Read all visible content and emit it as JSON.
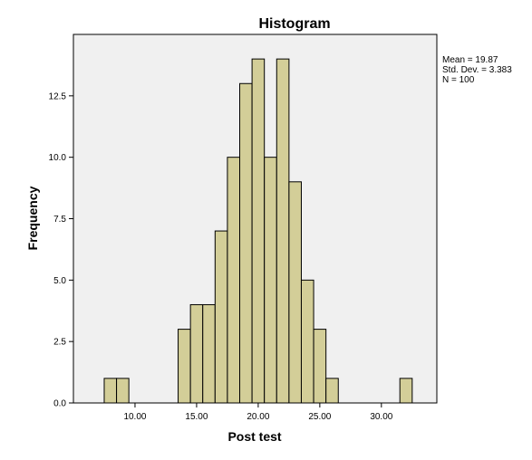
{
  "chart_data": {
    "type": "bar",
    "title": "Histogram",
    "xlabel": "Post test",
    "ylabel": "Frequency",
    "x_bin_width": 1.0,
    "x_bin_starts": [
      7.5,
      8.5,
      9.5,
      10.5,
      11.5,
      12.5,
      13.5,
      14.5,
      15.5,
      16.5,
      17.5,
      18.5,
      19.5,
      20.5,
      21.5,
      22.5,
      23.5,
      24.5,
      25.5,
      26.5,
      27.5,
      28.5,
      29.5,
      30.5,
      31.5
    ],
    "values": [
      1,
      1,
      0,
      0,
      0,
      0,
      3,
      4,
      4,
      7,
      10,
      13,
      14,
      10,
      14,
      9,
      5,
      3,
      1,
      0,
      0,
      0,
      0,
      0,
      1
    ],
    "xlim": [
      5.0,
      34.5
    ],
    "ylim": [
      0,
      15.0
    ],
    "x_ticks": [
      "10.00",
      "15.00",
      "20.00",
      "25.00",
      "30.00"
    ],
    "x_tick_values": [
      10,
      15,
      20,
      25,
      30
    ],
    "y_ticks": [
      "0.0",
      "2.5",
      "5.0",
      "7.5",
      "10.0",
      "12.5"
    ],
    "y_tick_values": [
      0,
      2.5,
      5,
      7.5,
      10,
      12.5
    ],
    "bar_color": "#d3ce98",
    "bar_edge_color": "#000000",
    "plot_background": "#f0f0f0",
    "grid": false,
    "stats": {
      "mean": "Mean = 19.87",
      "std": "Std. Dev. = 3.383",
      "n": "N = 100"
    }
  }
}
